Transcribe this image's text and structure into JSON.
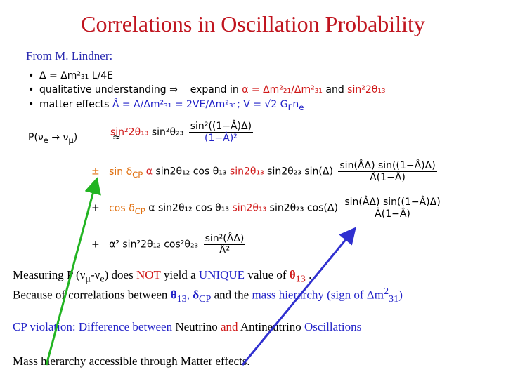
{
  "title": "Correlations in Oscillation Probability",
  "attribution": "From M. Lindner:",
  "bullets": [
    [
      "Δ = Δm²₃₁ L/4E"
    ],
    [
      "qualitative understanding  ⇒",
      "expand in",
      "α = Δm²₂₁/Δm²₃₁",
      "and",
      "sin²2θ₁₃"
    ],
    [
      "matter effects",
      "Â = A/Δm²₃₁ = 2VE/Δm²₃₁;  V = √2 G",
      "F",
      "n",
      "e"
    ]
  ],
  "formula": {
    "lhs": [
      "P(ν",
      "e",
      " → ν",
      "μ",
      ")"
    ],
    "approx": "≈",
    "rows": [
      {
        "sign": "",
        "terms": [
          "sin²2θ₁₃",
          "sin²θ₂₃"
        ],
        "num": "sin²((1−Â)Δ)",
        "den": "(1−Â)²"
      },
      {
        "sign": "±",
        "terms": [
          "sin δ",
          "CP",
          "α",
          "sin2θ₁₂ cos θ₁₃",
          "sin2θ₁₃",
          "sin2θ₂₃ sin(Δ)"
        ],
        "num": "sin(ÂΔ) sin((1−Â)Δ)",
        "den": "Â(1−Â)"
      },
      {
        "sign": "+",
        "terms": [
          "cos δ",
          "CP",
          "α sin2θ₁₂ cos θ₁₃",
          "sin2θ₁₃",
          "sin2θ₂₃ cos(Δ)"
        ],
        "num": "sin(ÂΔ) sin((1−Â)Δ)",
        "den": "Â(1−Â)"
      },
      {
        "sign": "+",
        "terms": [
          "α²",
          "sin²2θ₁₂ cos²θ₂₃"
        ],
        "num": "sin²(ÂΔ)",
        "den": "Â²"
      }
    ]
  },
  "paragraphs": [
    [
      "Measuring P (",
      "ν",
      "μ",
      "-ν",
      "e",
      ") does ",
      "NOT",
      " yield a ",
      "UNIQUE",
      " value of ",
      "θ",
      "13",
      " ."
    ],
    [
      "Because of correlations between ",
      "θ",
      "13",
      ", ",
      "δ",
      "CP",
      " and the ",
      "mass hierarchy (sign of ",
      "Δm",
      "2",
      "31",
      ")"
    ],
    [
      "CP violation: Difference between",
      " Neutrino ",
      "and",
      " Antineutrino ",
      "Oscillations"
    ],
    [
      "Mass hierarchy accessible through Matter effects."
    ]
  ]
}
